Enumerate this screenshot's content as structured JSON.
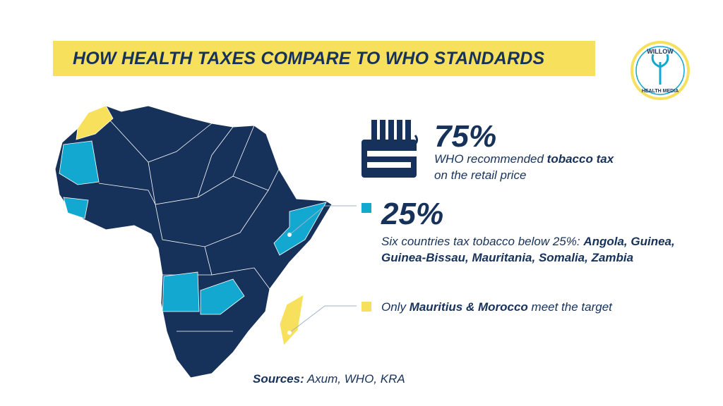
{
  "header": {
    "title": "HOW HEALTH TAXES COMPARE TO WHO STANDARDS"
  },
  "logo": {
    "top": "WILLOW",
    "bottom": "HEALTH MEDIA"
  },
  "stats": [
    {
      "value": "75%",
      "text": [
        "WHO recommended ",
        "tobacco tax",
        "on the retail price"
      ]
    },
    {
      "value": "25%",
      "text": [
        "Six countries tax tobacco below 25%: ",
        "Angola, Guinea, Guinea-Bissau, Mauritania, Somalia, Zambia"
      ]
    }
  ],
  "legend": {
    "text": [
      "Only ",
      "Mauritius & Morocco",
      " meet the target"
    ]
  },
  "sources": {
    "label": "Sources:",
    "text": " Axum, WHO, KRA"
  }
}
